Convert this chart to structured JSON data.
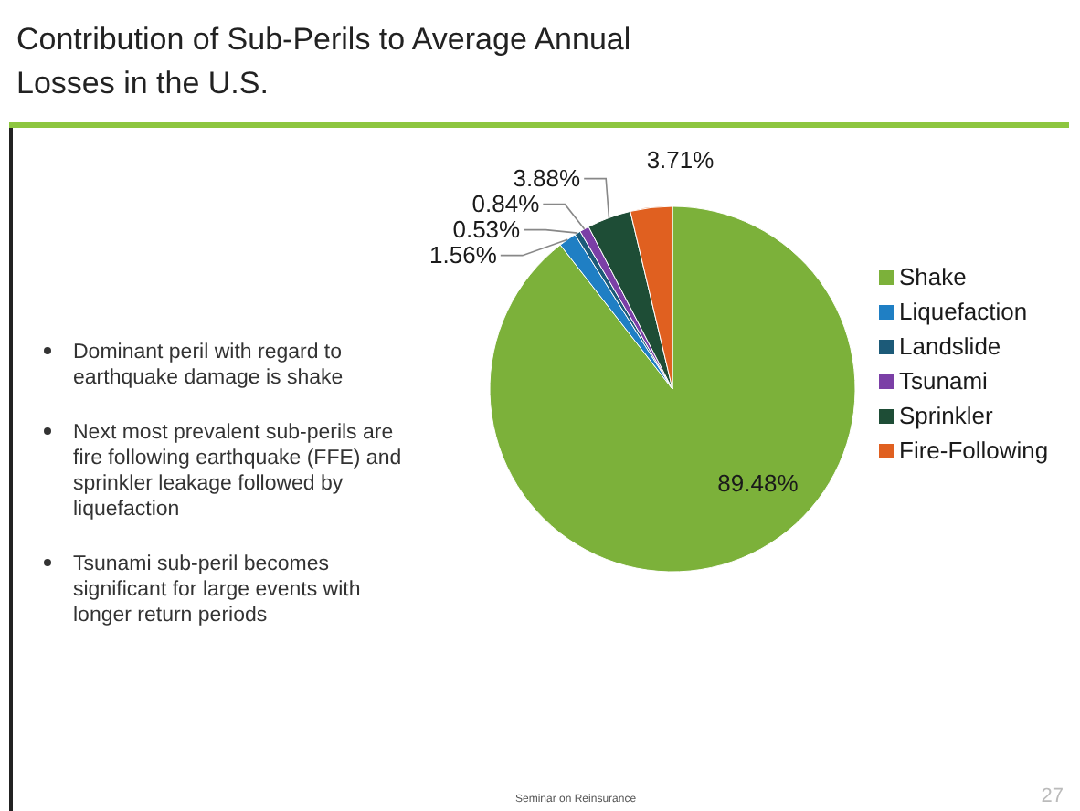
{
  "chart_data": {
    "type": "pie",
    "title": "Contribution of Sub-Perils to Average Annual Losses in the U.S.",
    "categories": [
      "Shake",
      "Liquefaction",
      "Landslide",
      "Tsunami",
      "Sprinkler",
      "Fire-Following"
    ],
    "values": [
      89.48,
      1.56,
      0.53,
      0.84,
      3.88,
      3.71
    ],
    "colors": [
      "#7cb13a",
      "#1f7fc4",
      "#1c5a78",
      "#7b3fa6",
      "#1e4d36",
      "#e06020"
    ],
    "value_labels": [
      "89.48%",
      "1.56%",
      "0.53%",
      "0.84%",
      "3.88%",
      "3.71%"
    ],
    "legend": "right",
    "annotations": [
      "Dominant peril with regard to earthquake damage is shake",
      "Next most prevalent sub-perils are fire following earthquake (FFE) and sprinkler leakage followed by liquefaction",
      "Tsunami sub-peril becomes significant for large events with longer return periods",
      "Seminar on Reinsurance",
      "27"
    ]
  }
}
